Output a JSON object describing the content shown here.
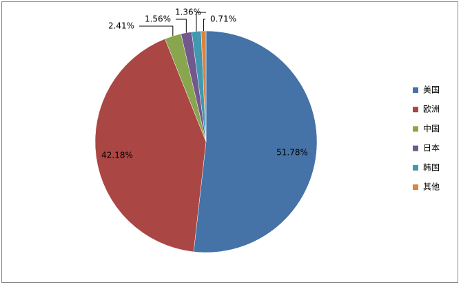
{
  "chart_data": {
    "type": "pie",
    "categories": [
      "美国",
      "欧洲",
      "中国",
      "日本",
      "韩国",
      "其他"
    ],
    "values": [
      51.78,
      42.18,
      2.41,
      1.56,
      1.36,
      0.71
    ],
    "value_labels": [
      "51.78%",
      "42.18%",
      "2.41%",
      "1.56%",
      "1.36%",
      "0.71%"
    ],
    "colors": [
      "#4572a7",
      "#aa4643",
      "#89a54e",
      "#71588f",
      "#4198af",
      "#db843d"
    ],
    "legend": "right"
  }
}
